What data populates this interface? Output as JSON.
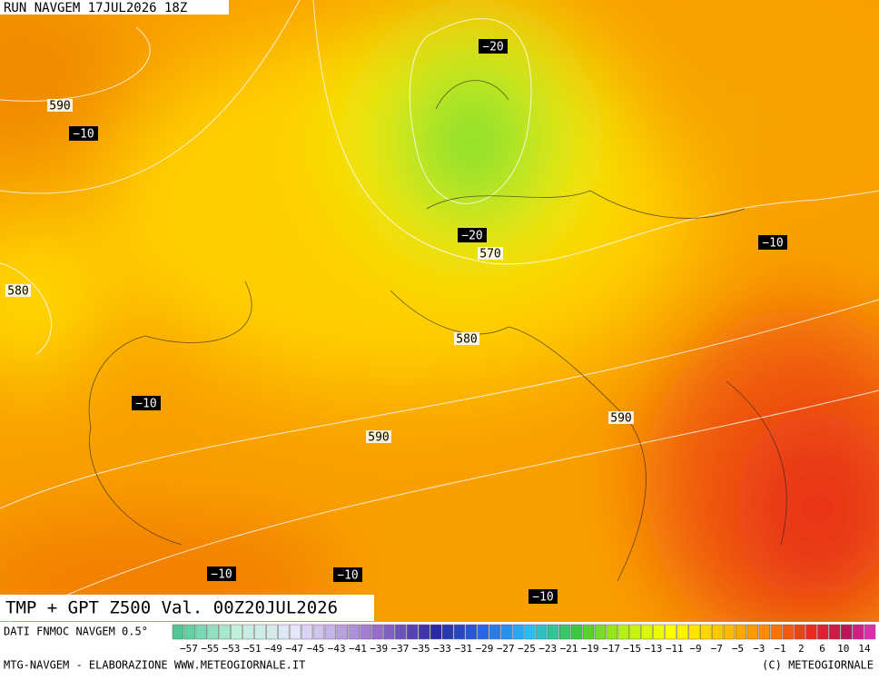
{
  "header": {
    "run": "RUN NAVGEM 17JUL2026 18Z",
    "title": "TMP + GPT Z500 Val. 00Z20JUL2026"
  },
  "map": {
    "labels": [
      "590",
      "−10",
      "−20",
      "−10",
      "−20",
      "570",
      "580",
      "580",
      "−10",
      "590",
      "590",
      "−10",
      "−10",
      "−10"
    ]
  },
  "legend": {
    "source": "DATI FNMOC NAVGEM 0.5°",
    "labels": [
      "−57",
      "−55",
      "−53",
      "−51",
      "−49",
      "−47",
      "−45",
      "−43",
      "−41",
      "−39",
      "−37",
      "−35",
      "−33",
      "−31",
      "−29",
      "−27",
      "−25",
      "−23",
      "−21",
      "−19",
      "−17",
      "−15",
      "−13",
      "−11",
      "−9",
      "−7",
      "−5",
      "−3",
      "−1",
      "2",
      "6",
      "10",
      "14"
    ]
  },
  "footer": {
    "left": "MTG-NAVGEM - ELABORAZIONE WWW.METEOGIORNALE.IT",
    "right": "(C) METEOGIORNALE"
  }
}
